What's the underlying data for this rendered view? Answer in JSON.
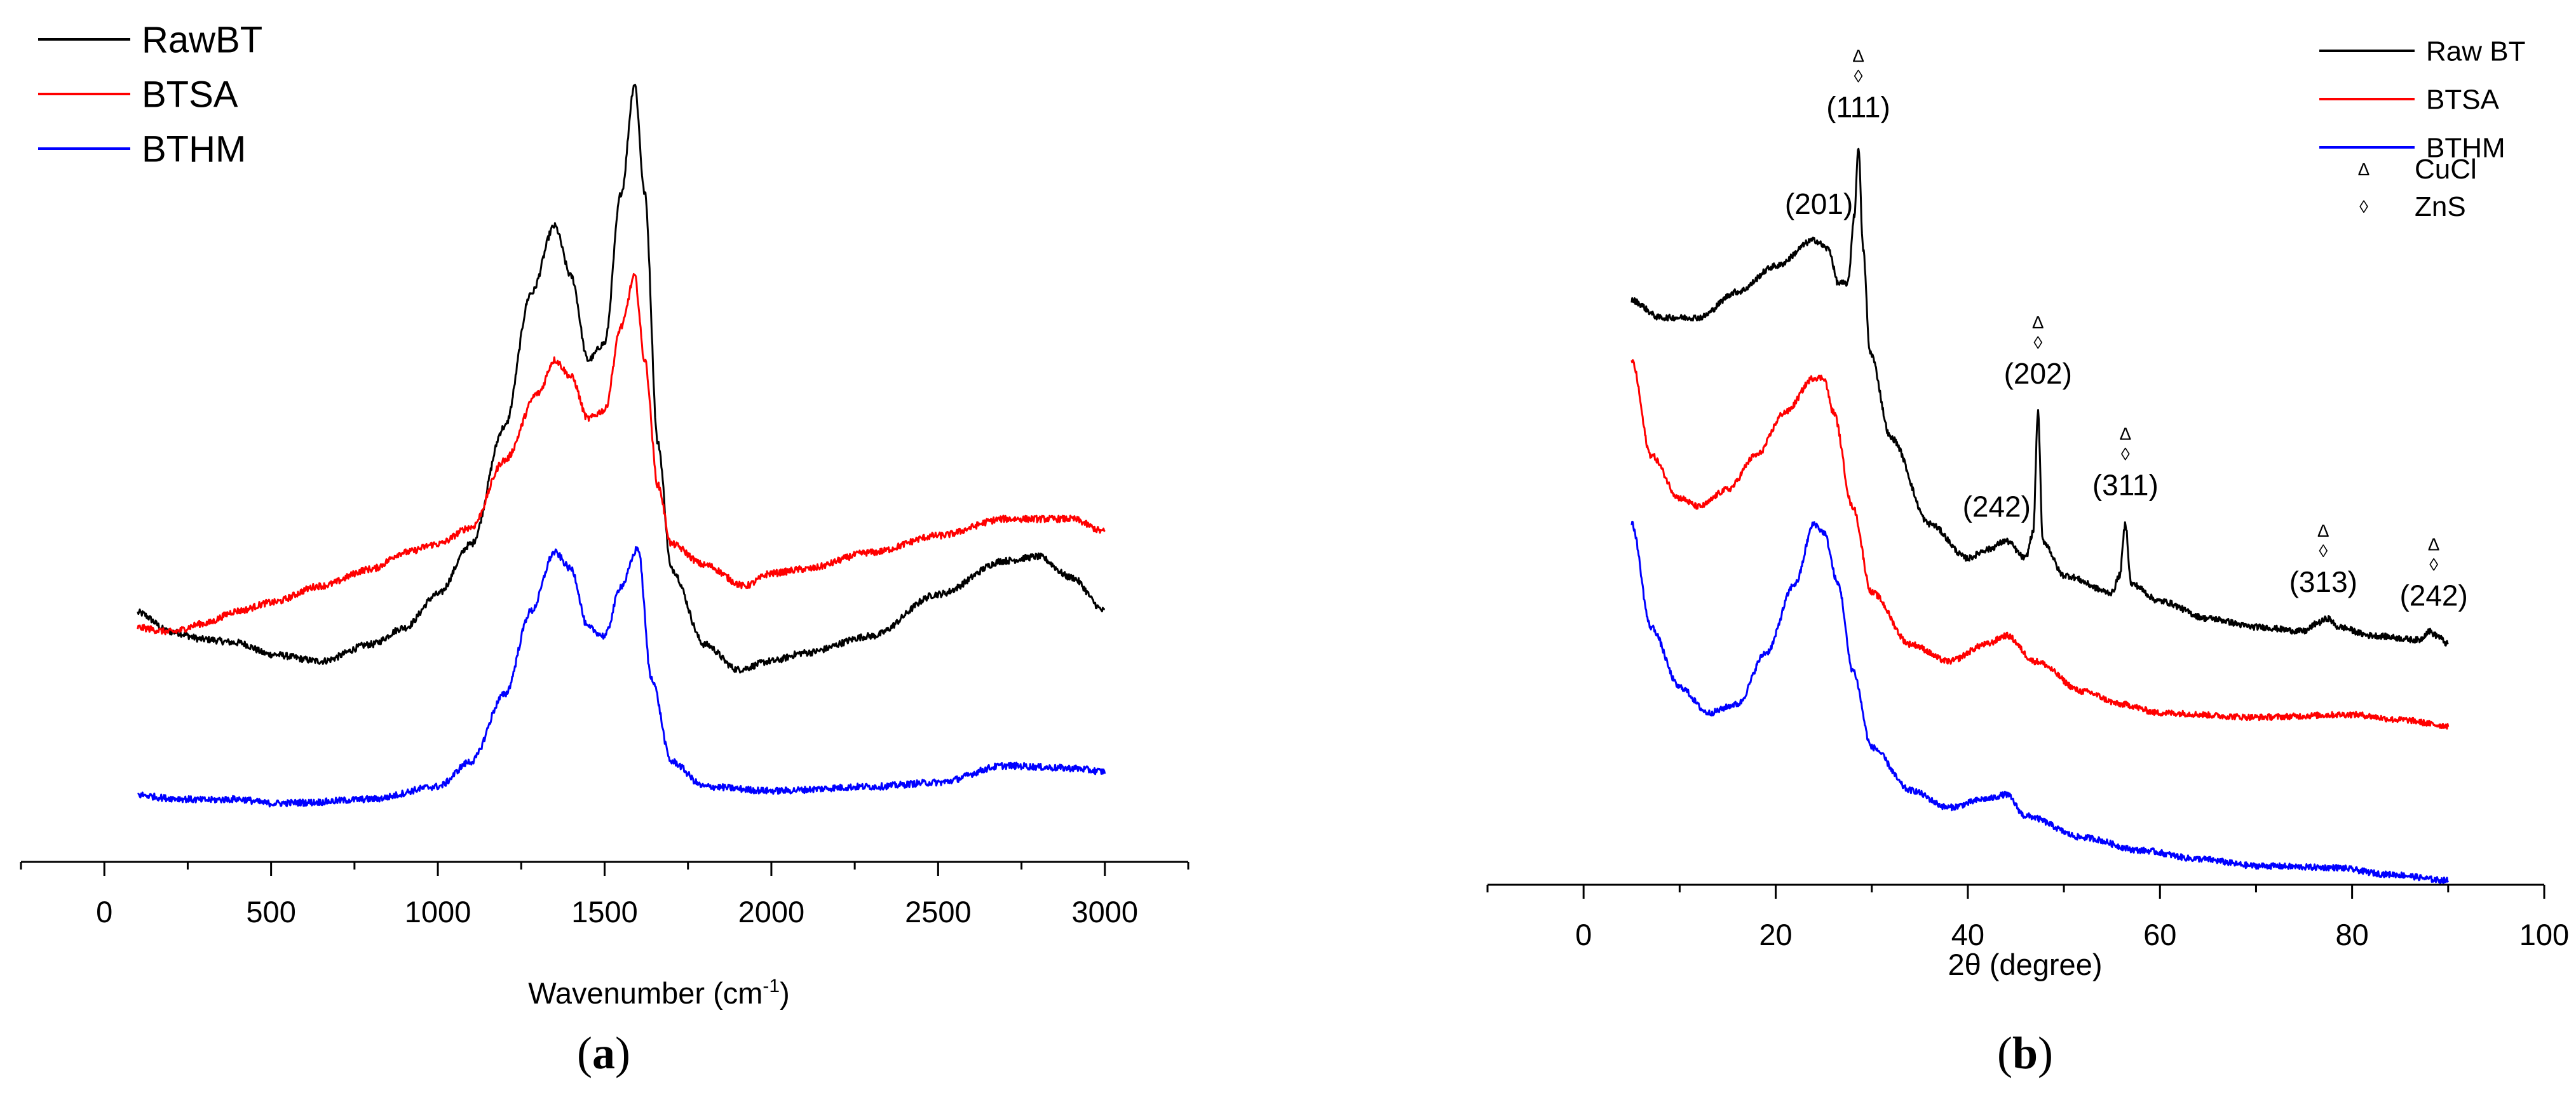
{
  "chart_data": [
    {
      "type": "line",
      "panel_label": "a",
      "xlabel": "Wavenumber (cm",
      "xlabel_sup": "-1",
      "xlabel_suffix": ")",
      "ylabel": "",
      "xlim": [
        -250,
        3250
      ],
      "ylim": [
        0,
        1
      ],
      "x_ticks": [
        0,
        500,
        1000,
        1500,
        2000,
        2500,
        3000
      ],
      "y_axis_visible": false,
      "grid": false,
      "legend_position": "top-left",
      "series": [
        {
          "name": "RawBT",
          "color": "#000000",
          "points": [
            [
              100,
              0.298
            ],
            [
              200,
              0.275
            ],
            [
              300,
              0.266
            ],
            [
              400,
              0.262
            ],
            [
              500,
              0.248
            ],
            [
              650,
              0.24
            ],
            [
              800,
              0.26
            ],
            [
              900,
              0.28
            ],
            [
              1000,
              0.32
            ],
            [
              1100,
              0.38
            ],
            [
              1200,
              0.52
            ],
            [
              1280,
              0.68
            ],
            [
              1350,
              0.76
            ],
            [
              1400,
              0.7
            ],
            [
              1450,
              0.6
            ],
            [
              1500,
              0.62
            ],
            [
              1550,
              0.8
            ],
            [
              1590,
              0.93
            ],
            [
              1620,
              0.8
            ],
            [
              1660,
              0.5
            ],
            [
              1700,
              0.35
            ],
            [
              1800,
              0.26
            ],
            [
              1900,
              0.23
            ],
            [
              2000,
              0.24
            ],
            [
              2100,
              0.25
            ],
            [
              2300,
              0.27
            ],
            [
              2500,
              0.32
            ],
            [
              2700,
              0.36
            ],
            [
              2800,
              0.365
            ],
            [
              2900,
              0.34
            ],
            [
              3000,
              0.3
            ]
          ]
        },
        {
          "name": "BTSA",
          "color": "#ff0000",
          "points": [
            [
              100,
              0.28
            ],
            [
              200,
              0.275
            ],
            [
              300,
              0.285
            ],
            [
              400,
              0.3
            ],
            [
              500,
              0.31
            ],
            [
              650,
              0.33
            ],
            [
              800,
              0.35
            ],
            [
              900,
              0.37
            ],
            [
              1000,
              0.38
            ],
            [
              1100,
              0.4
            ],
            [
              1200,
              0.48
            ],
            [
              1300,
              0.56
            ],
            [
              1350,
              0.6
            ],
            [
              1400,
              0.58
            ],
            [
              1450,
              0.53
            ],
            [
              1500,
              0.54
            ],
            [
              1550,
              0.64
            ],
            [
              1590,
              0.7
            ],
            [
              1620,
              0.6
            ],
            [
              1660,
              0.45
            ],
            [
              1700,
              0.38
            ],
            [
              1800,
              0.355
            ],
            [
              1920,
              0.33
            ],
            [
              2000,
              0.345
            ],
            [
              2100,
              0.35
            ],
            [
              2300,
              0.37
            ],
            [
              2500,
              0.39
            ],
            [
              2700,
              0.41
            ],
            [
              2900,
              0.41
            ],
            [
              3000,
              0.395
            ]
          ]
        },
        {
          "name": "BTHM",
          "color": "#0000ff",
          "points": [
            [
              100,
              0.08
            ],
            [
              200,
              0.076
            ],
            [
              300,
              0.074
            ],
            [
              400,
              0.075
            ],
            [
              500,
              0.07
            ],
            [
              600,
              0.071
            ],
            [
              800,
              0.075
            ],
            [
              1000,
              0.09
            ],
            [
              1100,
              0.12
            ],
            [
              1200,
              0.2
            ],
            [
              1280,
              0.3
            ],
            [
              1350,
              0.37
            ],
            [
              1400,
              0.35
            ],
            [
              1450,
              0.28
            ],
            [
              1500,
              0.27
            ],
            [
              1550,
              0.33
            ],
            [
              1600,
              0.375
            ],
            [
              1640,
              0.22
            ],
            [
              1700,
              0.12
            ],
            [
              1800,
              0.09
            ],
            [
              2000,
              0.085
            ],
            [
              2300,
              0.09
            ],
            [
              2500,
              0.095
            ],
            [
              2700,
              0.115
            ],
            [
              2900,
              0.112
            ],
            [
              3000,
              0.108
            ]
          ]
        }
      ]
    },
    {
      "type": "line",
      "panel_label": "b",
      "xlabel": "2θ (degree)",
      "ylabel": "",
      "xlim": [
        -10,
        100
      ],
      "ylim": [
        0,
        1
      ],
      "x_ticks": [
        0,
        20,
        40,
        60,
        80,
        100
      ],
      "y_axis_visible": false,
      "grid": false,
      "legend_position": "top-right",
      "series": [
        {
          "name": "Raw BT",
          "color": "#000000",
          "points": [
            [
              5,
              0.68
            ],
            [
              8,
              0.66
            ],
            [
              12,
              0.66
            ],
            [
              16,
              0.69
            ],
            [
              20,
              0.72
            ],
            [
              24,
              0.75
            ],
            [
              25.5,
              0.74
            ],
            [
              26.5,
              0.7
            ],
            [
              27.5,
              0.7
            ],
            [
              28.2,
              0.78
            ],
            [
              28.6,
              0.86
            ],
            [
              29.1,
              0.74
            ],
            [
              29.8,
              0.62
            ],
            [
              32,
              0.52
            ],
            [
              36,
              0.42
            ],
            [
              40,
              0.38
            ],
            [
              42,
              0.39
            ],
            [
              44,
              0.4
            ],
            [
              46,
              0.38
            ],
            [
              46.8,
              0.41
            ],
            [
              47.3,
              0.55
            ],
            [
              47.8,
              0.4
            ],
            [
              50,
              0.36
            ],
            [
              55,
              0.34
            ],
            [
              55.8,
              0.36
            ],
            [
              56.4,
              0.42
            ],
            [
              57,
              0.35
            ],
            [
              60,
              0.33
            ],
            [
              65,
              0.31
            ],
            [
              70,
              0.3
            ],
            [
              75,
              0.295
            ],
            [
              76.5,
              0.305
            ],
            [
              77.5,
              0.31
            ],
            [
              78.5,
              0.3
            ],
            [
              82,
              0.29
            ],
            [
              87,
              0.285
            ],
            [
              88,
              0.295
            ],
            [
              88.8,
              0.29
            ],
            [
              90,
              0.28
            ]
          ]
        },
        {
          "name": "BTSA",
          "color": "#ff0000",
          "points": [
            [
              5,
              0.61
            ],
            [
              7,
              0.5
            ],
            [
              10,
              0.45
            ],
            [
              12,
              0.44
            ],
            [
              15,
              0.46
            ],
            [
              18,
              0.5
            ],
            [
              21,
              0.55
            ],
            [
              24,
              0.59
            ],
            [
              25,
              0.59
            ],
            [
              26,
              0.55
            ],
            [
              28,
              0.44
            ],
            [
              30,
              0.34
            ],
            [
              34,
              0.28
            ],
            [
              38,
              0.26
            ],
            [
              42,
              0.28
            ],
            [
              44,
              0.29
            ],
            [
              47,
              0.26
            ],
            [
              52,
              0.225
            ],
            [
              56,
              0.21
            ],
            [
              60,
              0.2
            ],
            [
              70,
              0.195
            ],
            [
              80,
              0.198
            ],
            [
              85,
              0.192
            ],
            [
              90,
              0.185
            ]
          ]
        },
        {
          "name": "BTHM",
          "color": "#0000ff",
          "points": [
            [
              5,
              0.42
            ],
            [
              7,
              0.3
            ],
            [
              10,
              0.23
            ],
            [
              13,
              0.2
            ],
            [
              16,
              0.21
            ],
            [
              19,
              0.27
            ],
            [
              22,
              0.35
            ],
            [
              24,
              0.42
            ],
            [
              25,
              0.41
            ],
            [
              26.5,
              0.35
            ],
            [
              28,
              0.25
            ],
            [
              30,
              0.16
            ],
            [
              34,
              0.11
            ],
            [
              38,
              0.09
            ],
            [
              42,
              0.1
            ],
            [
              44,
              0.105
            ],
            [
              46,
              0.08
            ],
            [
              52,
              0.055
            ],
            [
              58,
              0.04
            ],
            [
              64,
              0.03
            ],
            [
              70,
              0.022
            ],
            [
              78,
              0.02
            ],
            [
              84,
              0.012
            ],
            [
              90,
              0.005
            ]
          ]
        }
      ],
      "annotations": [
        {
          "label": "(111)",
          "markers": [
            "Δ",
            "◊"
          ],
          "x": 28.6
        },
        {
          "label": "(201)",
          "markers": [],
          "x": 24.5
        },
        {
          "label": "(202)",
          "markers": [
            "Δ",
            "◊"
          ],
          "x": 47.3
        },
        {
          "label": "(311)",
          "markers": [
            "Δ",
            "◊"
          ],
          "x": 56.4
        },
        {
          "label": "(242)",
          "markers": [],
          "x": 43
        },
        {
          "label": "(313)",
          "markers": [
            "Δ",
            "◊"
          ],
          "x": 77
        },
        {
          "label": "(242)",
          "markers": [
            "Δ",
            "◊"
          ],
          "x": 88.5
        }
      ],
      "extra_legend": [
        {
          "symbol": "Δ",
          "label": "CuCl"
        },
        {
          "symbol": "◊",
          "label": "ZnS"
        }
      ]
    }
  ]
}
